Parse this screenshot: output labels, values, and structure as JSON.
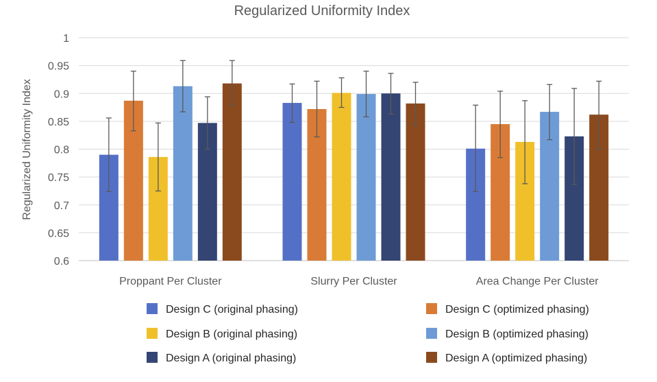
{
  "chart_data": {
    "type": "bar",
    "title": "Regularized Uniformity Index",
    "xlabel": "",
    "ylabel": "Regularized Uniformity Index",
    "ylim": [
      0.6,
      1.0
    ],
    "yticks": [
      0.6,
      0.65,
      0.7,
      0.75,
      0.8,
      0.85,
      0.9,
      0.95,
      1
    ],
    "ytick_labels": [
      "0.6",
      "0.65",
      "0.7",
      "0.75",
      "0.8",
      "0.85",
      "0.9",
      "0.95",
      "1"
    ],
    "grid": true,
    "legend_position": "bottom",
    "categories": [
      "Proppant Per Cluster",
      "Slurry Per Cluster",
      "Area Change Per Cluster"
    ],
    "series": [
      {
        "name": "Design C (original phasing)",
        "color": "#5470C6",
        "values": [
          0.79,
          0.883,
          0.801
        ],
        "error_low": [
          0.724,
          0.848,
          0.724
        ],
        "error_high": [
          0.856,
          0.917,
          0.879
        ]
      },
      {
        "name": "Design C (optimized phasing)",
        "color": "#D97B36",
        "values": [
          0.887,
          0.872,
          0.845
        ],
        "error_low": [
          0.833,
          0.822,
          0.785
        ],
        "error_high": [
          0.94,
          0.922,
          0.904
        ]
      },
      {
        "name": "Design B (original phasing)",
        "color": "#F0C02B",
        "values": [
          0.786,
          0.901,
          0.813
        ],
        "error_low": [
          0.725,
          0.875,
          0.738
        ],
        "error_high": [
          0.847,
          0.928,
          0.887
        ]
      },
      {
        "name": "Design B (optimized phasing)",
        "color": "#6E9BD5",
        "values": [
          0.913,
          0.899,
          0.867
        ],
        "error_low": [
          0.867,
          0.858,
          0.817
        ],
        "error_high": [
          0.959,
          0.94,
          0.916
        ]
      },
      {
        "name": "Design A (original phasing)",
        "color": "#344573",
        "values": [
          0.847,
          0.9,
          0.823
        ],
        "error_low": [
          0.8,
          0.863,
          0.737
        ],
        "error_high": [
          0.894,
          0.936,
          0.909
        ]
      },
      {
        "name": "Design A (optimized phasing)",
        "color": "#8B4A1E",
        "values": [
          0.918,
          0.882,
          0.862
        ],
        "error_low": [
          0.878,
          0.843,
          0.8
        ],
        "error_high": [
          0.959,
          0.92,
          0.922
        ]
      }
    ]
  }
}
